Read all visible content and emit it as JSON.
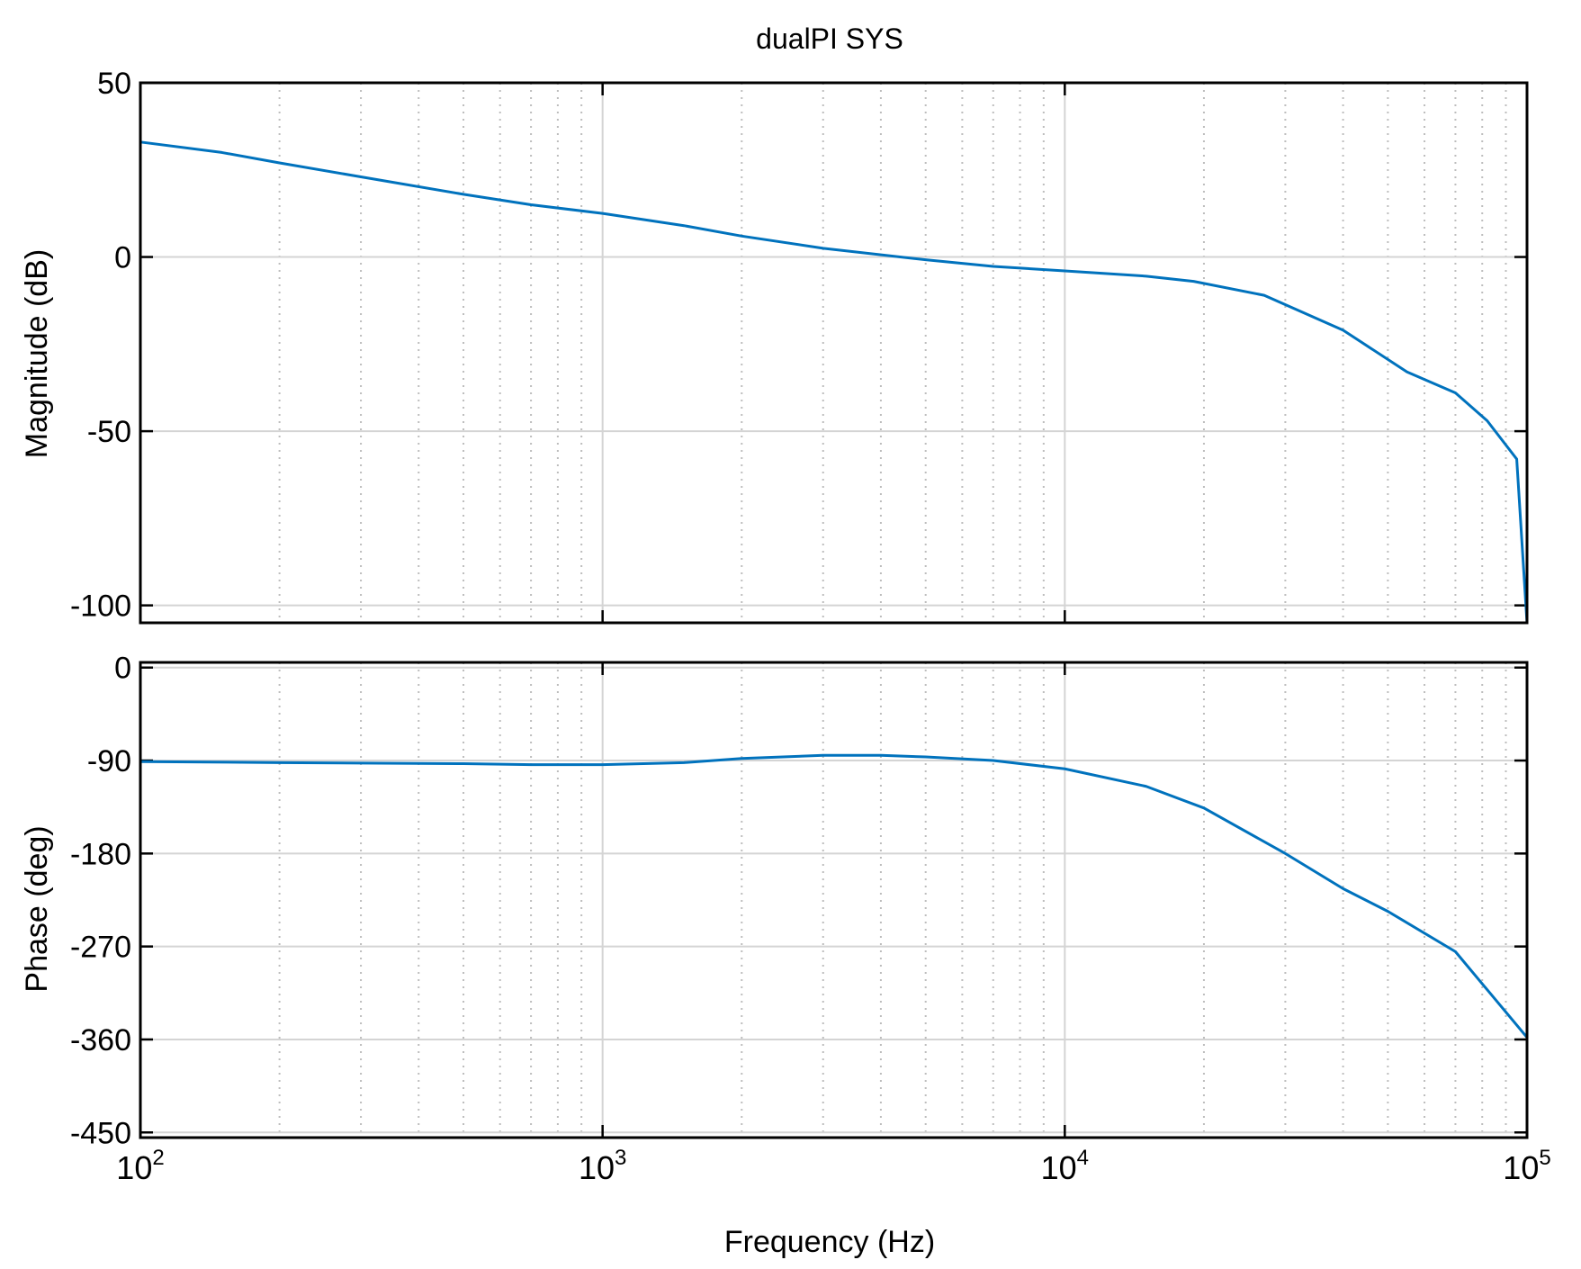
{
  "chart_data": [
    {
      "type": "line",
      "panel": "magnitude",
      "title": "dualPI SYS",
      "ylabel": "Magnitude (dB)",
      "xscale": "log",
      "xlim": [
        100,
        100000
      ],
      "ylim": [
        -105,
        50
      ],
      "yticks": [
        50,
        0,
        -50,
        -100
      ],
      "ytick_labels": [
        "50",
        "0",
        "-50",
        "-100"
      ],
      "grid": true,
      "color": "#0072BD",
      "series": [
        {
          "x": [
            100,
            150,
            200,
            300,
            500,
            700,
            1000,
            1500,
            2000,
            3000,
            5000,
            7000,
            10000,
            15000,
            19000,
            27000,
            40000,
            55000,
            70000,
            82000,
            95000,
            100000
          ],
          "y": [
            33,
            30,
            27,
            23,
            18,
            15,
            12.5,
            9,
            6,
            2.5,
            -0.8,
            -2.7,
            -4,
            -5.5,
            -7,
            -11,
            -21,
            -33,
            -39,
            -47,
            -58,
            -105
          ]
        }
      ]
    },
    {
      "type": "line",
      "panel": "phase",
      "xlabel": "Frequency  (Hz)",
      "ylabel": "Phase (deg)",
      "xscale": "log",
      "xlim": [
        100,
        100000
      ],
      "ylim": [
        -455,
        5
      ],
      "yticks": [
        0,
        -90,
        -180,
        -270,
        -360,
        -450
      ],
      "ytick_labels": [
        "0",
        "-90",
        "-180",
        "-270",
        "-360",
        "-450"
      ],
      "xticks": [
        100,
        1000,
        10000,
        100000
      ],
      "xtick_labels": [
        {
          "base": "10",
          "exp": "2"
        },
        {
          "base": "10",
          "exp": "3"
        },
        {
          "base": "10",
          "exp": "4"
        },
        {
          "base": "10",
          "exp": "5"
        }
      ],
      "grid": true,
      "color": "#0072BD",
      "series": [
        {
          "x": [
            100,
            200,
            300,
            500,
            700,
            1000,
            1500,
            2000,
            3000,
            4000,
            5000,
            7000,
            10000,
            15000,
            20000,
            30000,
            40000,
            50000,
            70000,
            100000
          ],
          "y": [
            -91,
            -92,
            -92.5,
            -93,
            -94,
            -94,
            -92,
            -88,
            -85,
            -85,
            -86.5,
            -90,
            -98,
            -115,
            -136,
            -180,
            -214,
            -236,
            -275,
            -358
          ]
        }
      ]
    }
  ]
}
